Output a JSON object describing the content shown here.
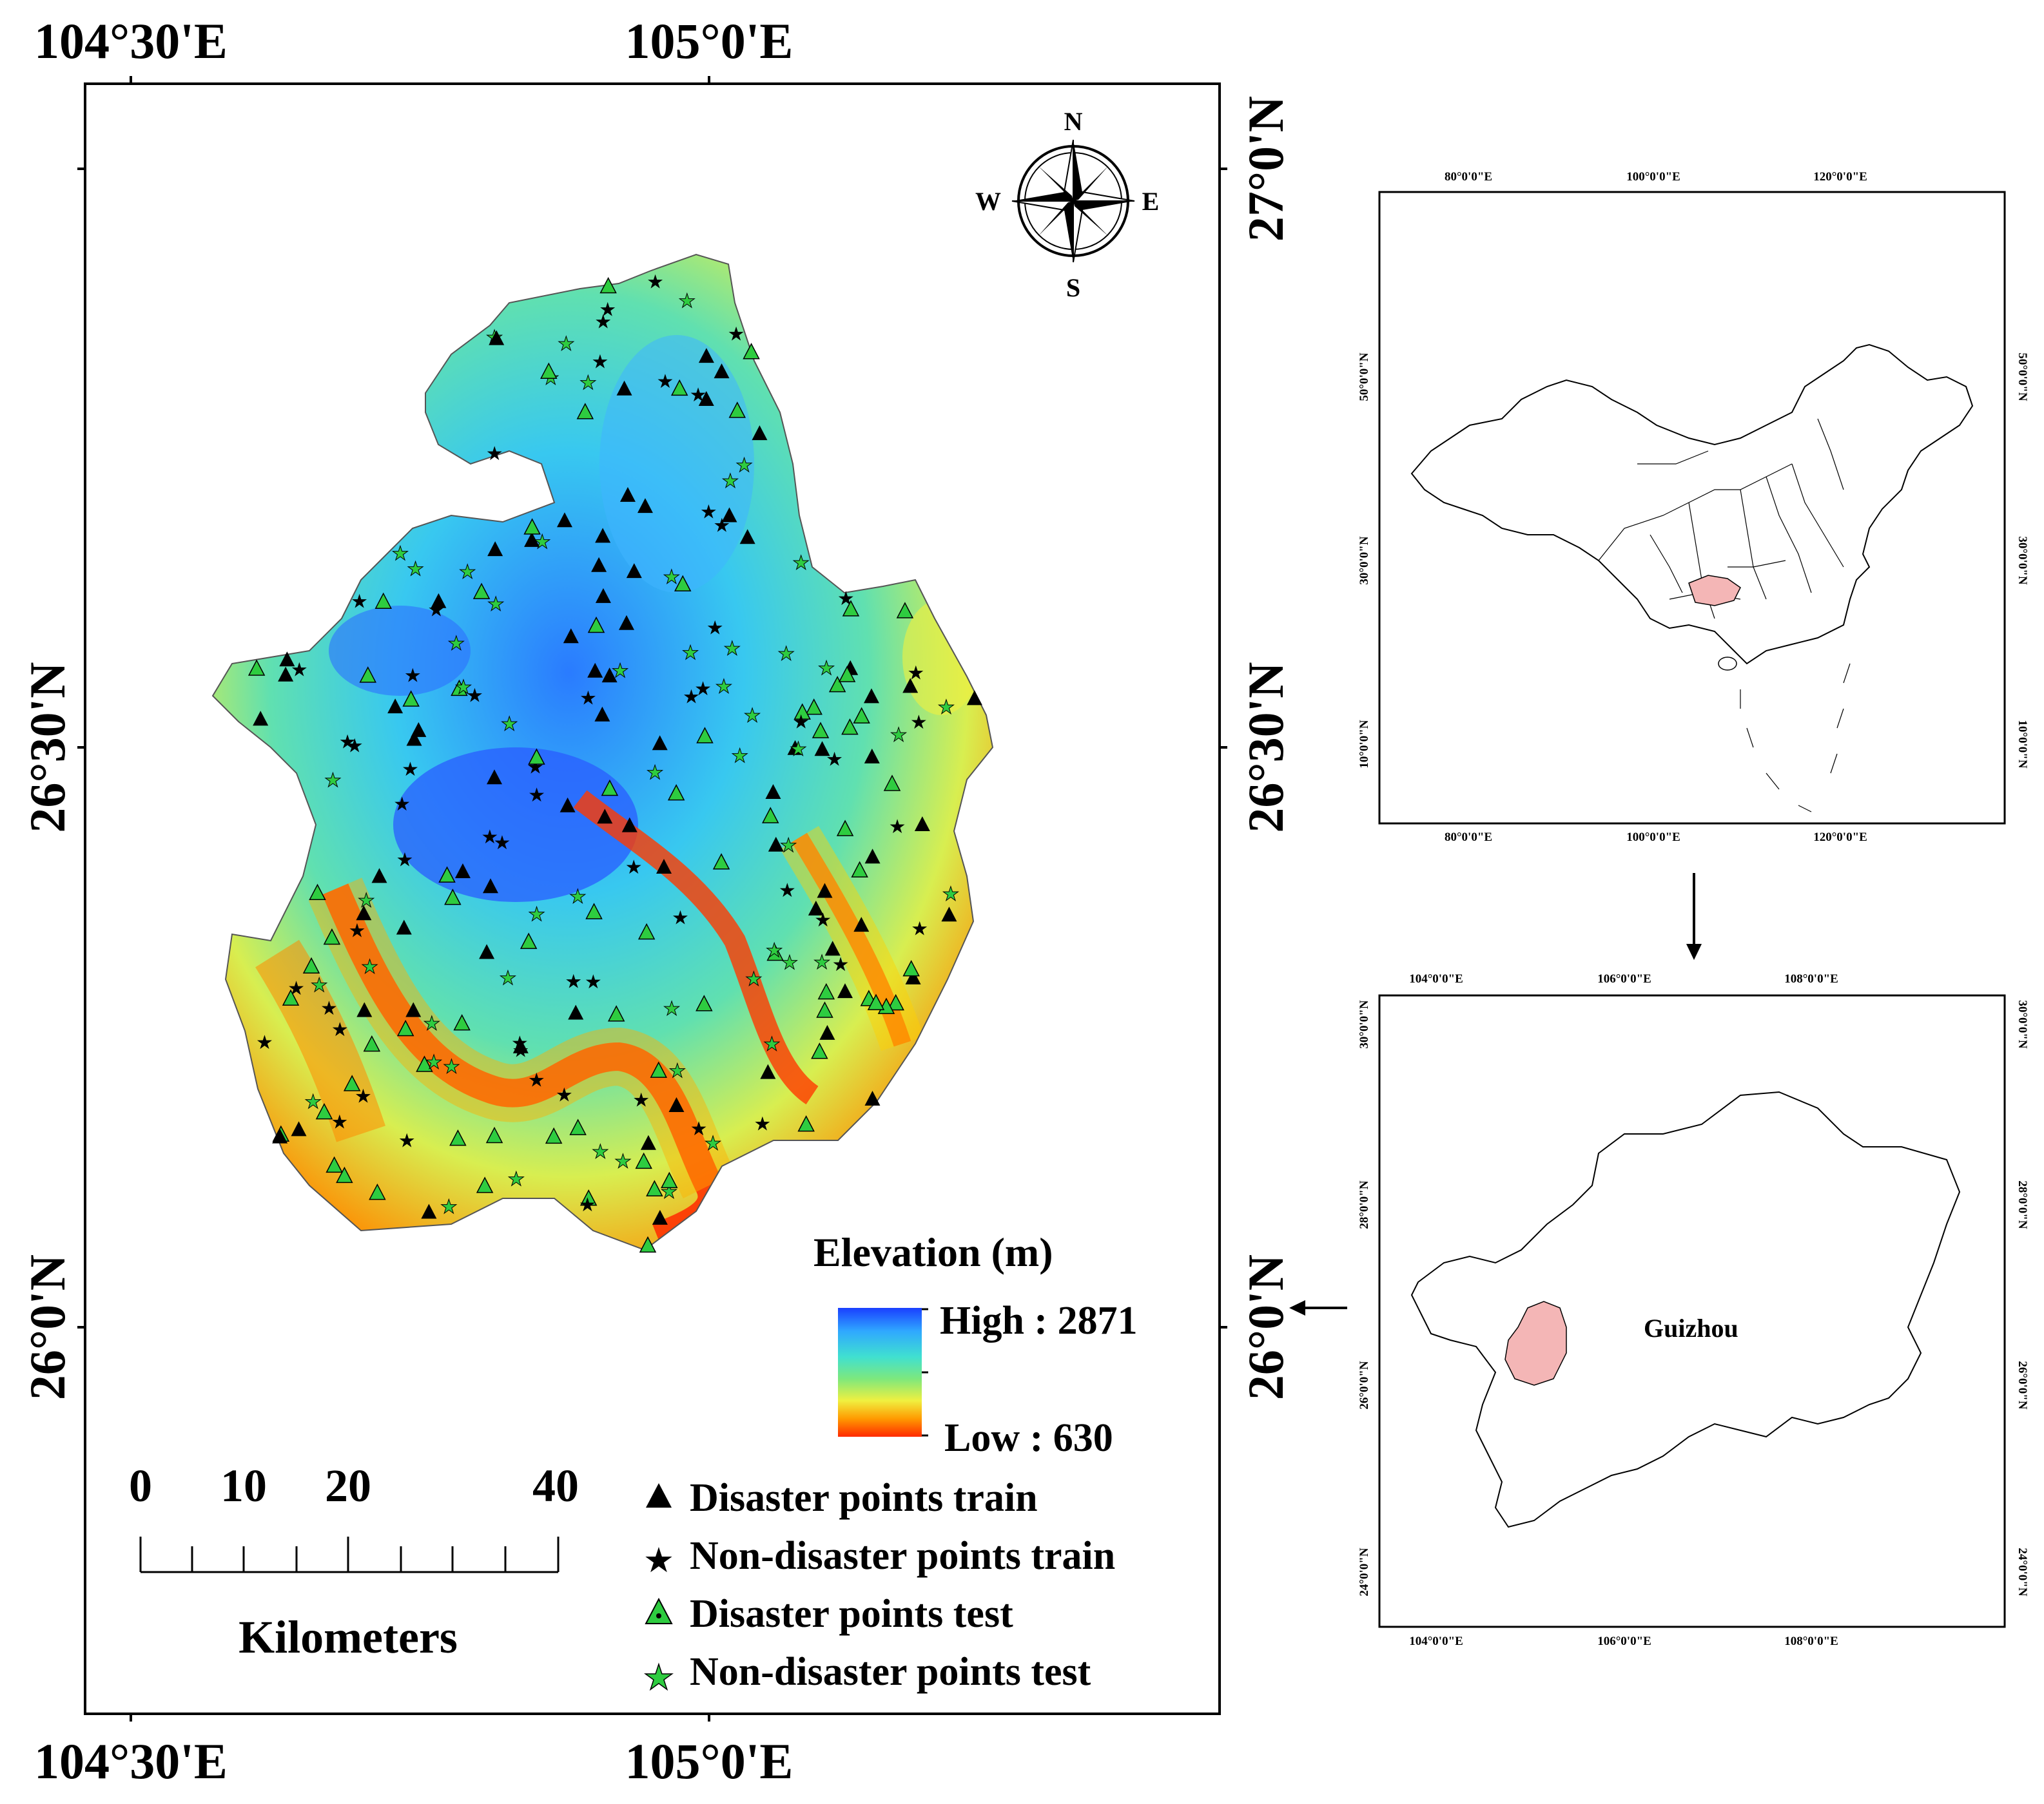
{
  "main_map": {
    "top_lon_labels": [
      "104°30'E",
      "105°0'E"
    ],
    "bottom_lon_labels": [
      "104°30'E",
      "105°0'E"
    ],
    "left_lat_labels": [
      "26°30'N",
      "26°0'N"
    ],
    "right_lat_labels": [
      "27°0'N",
      "26°30'N",
      "26°0'N"
    ],
    "compass": {
      "n": "N",
      "s": "S",
      "e": "E",
      "w": "W"
    },
    "elevation_legend": {
      "title": "Elevation (m)",
      "high_label": "High : 2871",
      "low_label": "Low : 630",
      "high_value": 2871,
      "low_value": 630,
      "colors": [
        "#1a3fff",
        "#2fa8ff",
        "#40e0d0",
        "#7de87d",
        "#f0f040",
        "#ff9a00",
        "#ff2a00"
      ]
    },
    "scale_bar": {
      "labels": [
        "0",
        "10",
        "20",
        "40"
      ],
      "unit": "Kilometers"
    },
    "points_legend": [
      {
        "symbol": "black-triangle",
        "label": "Disaster points train"
      },
      {
        "symbol": "black-star",
        "label": "Non-disaster points train"
      },
      {
        "symbol": "green-triangle",
        "label": "Disaster points test"
      },
      {
        "symbol": "green-star",
        "label": "Non-disaster points test"
      }
    ],
    "symbol_colors": {
      "train": "#000000",
      "test": "#2ecc40"
    }
  },
  "china_inset": {
    "top_lon_labels": [
      "80°0'0\"E",
      "100°0'0\"E",
      "120°0'0\"E"
    ],
    "bottom_lon_labels": [
      "80°0'0\"E",
      "100°0'0\"E",
      "120°0'0\"E"
    ],
    "lat_labels": [
      "50°0'0\"N",
      "30°0'0\"N",
      "10°0'0\"N"
    ],
    "highlight_color": "#f4b6b6"
  },
  "guizhou_inset": {
    "top_lon_labels": [
      "104°0'0\"E",
      "106°0'0\"E",
      "108°0'0\"E"
    ],
    "bottom_lon_labels": [
      "104°0'0\"E",
      "106°0'0\"E",
      "108°0'0\"E"
    ],
    "lat_labels": [
      "30°0'0\"N",
      "28°0'0\"N",
      "26°0'0\"N",
      "24°0'0\"N"
    ],
    "region_label": "Guizhou",
    "highlight_color": "#f4b6b6"
  }
}
